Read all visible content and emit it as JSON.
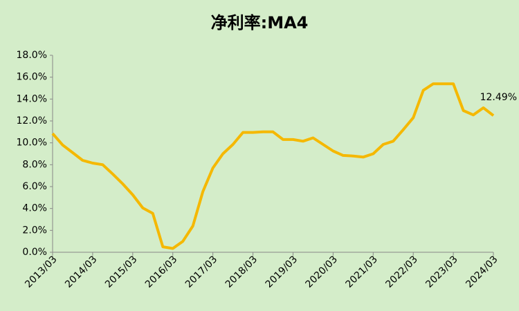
{
  "chart_data": {
    "type": "line",
    "title": "净利率:MA4",
    "categories": [
      "2013/03",
      null,
      null,
      null,
      "2014/03",
      null,
      null,
      null,
      "2015/03",
      null,
      null,
      null,
      "2016/03",
      null,
      null,
      null,
      "2017/03",
      null,
      null,
      null,
      "2018/03",
      null,
      null,
      null,
      "2019/03",
      null,
      null,
      null,
      "2020/03",
      null,
      null,
      null,
      "2021/03",
      null,
      null,
      null,
      "2022/03",
      null,
      null,
      null,
      "2023/03",
      null,
      null,
      null,
      "2024/03"
    ],
    "values": [
      10.85,
      9.8,
      9.1,
      8.4,
      8.15,
      8.0,
      7.15,
      6.25,
      5.25,
      4.05,
      3.55,
      0.5,
      0.35,
      1.0,
      2.4,
      5.55,
      7.7,
      9.0,
      9.85,
      10.95,
      10.95,
      11.0,
      11.0,
      10.3,
      10.3,
      10.15,
      10.45,
      9.85,
      9.25,
      8.85,
      8.8,
      8.7,
      9.0,
      9.85,
      10.15,
      11.2,
      12.3,
      14.8,
      15.4,
      15.4,
      15.4,
      12.95,
      12.55,
      13.2,
      12.49
    ],
    "value_labels": [
      null,
      null,
      null,
      null,
      null,
      null,
      null,
      null,
      null,
      null,
      null,
      null,
      null,
      null,
      null,
      null,
      null,
      null,
      null,
      null,
      null,
      null,
      null,
      null,
      null,
      null,
      null,
      null,
      null,
      null,
      null,
      null,
      null,
      null,
      null,
      null,
      null,
      null,
      null,
      null,
      null,
      null,
      null,
      null,
      "12.49%"
    ],
    "color": "#f5b800",
    "ylim": [
      0,
      18
    ],
    "yticks": [
      {
        "value": 0,
        "label": "0.0%"
      },
      {
        "value": 2,
        "label": "2.0%"
      },
      {
        "value": 4,
        "label": "4.0%"
      },
      {
        "value": 6,
        "label": "6.0%"
      },
      {
        "value": 8,
        "label": "8.0%"
      },
      {
        "value": 10,
        "label": "10.0%"
      },
      {
        "value": 12,
        "label": "12.0%"
      },
      {
        "value": 14,
        "label": "14.0%"
      },
      {
        "value": 16,
        "label": "16.0%"
      },
      {
        "value": 18,
        "label": "18.0%"
      }
    ],
    "grid": false
  }
}
